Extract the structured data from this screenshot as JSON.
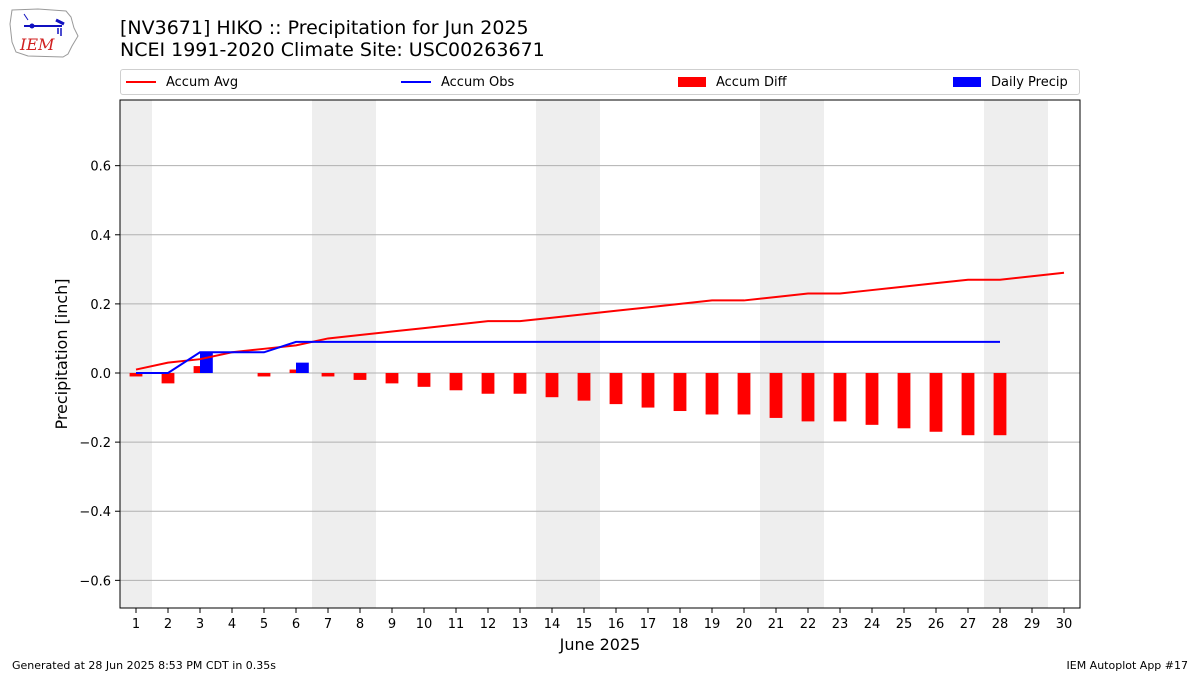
{
  "header": {
    "logo_text": "IEM",
    "title_line1": "[NV3671] HIKO :: Precipitation for Jun 2025",
    "title_line2": "NCEI 1991-2020 Climate Site: USC00263671"
  },
  "legend": {
    "accum_avg": "Accum Avg",
    "accum_obs": "Accum Obs",
    "accum_diff": "Accum Diff",
    "daily_precip": "Daily Precip"
  },
  "colors": {
    "accum_avg": "#ff0000",
    "accum_obs": "#0000ff",
    "accum_diff": "#ff0000",
    "daily_precip": "#0000ff",
    "weekend_band": "#eeeeee",
    "grid": "#b0b0b0"
  },
  "footer": {
    "generated": "Generated at 28 Jun 2025 8:53 PM CDT in 0.35s",
    "app": "IEM Autoplot App #17"
  },
  "chart_data": {
    "type": "bar",
    "xlabel": "June 2025",
    "ylabel": "Precipitation [inch]",
    "xlim": [
      0.5,
      30.5
    ],
    "ylim": [
      -0.68,
      0.79
    ],
    "x_ticks": [
      1,
      2,
      3,
      4,
      5,
      6,
      7,
      8,
      9,
      10,
      11,
      12,
      13,
      14,
      15,
      16,
      17,
      18,
      19,
      20,
      21,
      22,
      23,
      24,
      25,
      26,
      27,
      28,
      29,
      30
    ],
    "y_ticks": [
      -0.6,
      -0.4,
      -0.2,
      0.0,
      0.2,
      0.4,
      0.6
    ],
    "y_tick_labels": [
      "−0.6",
      "−0.4",
      "−0.2",
      "0.0",
      "0.2",
      "0.4",
      "0.6"
    ],
    "grid": "horizontal",
    "legend_position": "top",
    "weekend_bands": [
      [
        1,
        1
      ],
      [
        7,
        8
      ],
      [
        14,
        15
      ],
      [
        21,
        22
      ],
      [
        28,
        29
      ]
    ],
    "series": [
      {
        "name": "Accum Avg",
        "kind": "line",
        "x": [
          1,
          2,
          3,
          4,
          5,
          6,
          7,
          8,
          9,
          10,
          11,
          12,
          13,
          14,
          15,
          16,
          17,
          18,
          19,
          20,
          21,
          22,
          23,
          24,
          25,
          26,
          27,
          28,
          29,
          30
        ],
        "values": [
          0.01,
          0.03,
          0.04,
          0.06,
          0.07,
          0.08,
          0.1,
          0.11,
          0.12,
          0.13,
          0.14,
          0.15,
          0.15,
          0.16,
          0.17,
          0.18,
          0.19,
          0.2,
          0.21,
          0.21,
          0.22,
          0.23,
          0.23,
          0.24,
          0.25,
          0.26,
          0.27,
          0.27,
          0.28,
          0.29
        ]
      },
      {
        "name": "Accum Obs",
        "kind": "line",
        "x": [
          1,
          2,
          3,
          4,
          5,
          6,
          7,
          8,
          9,
          10,
          11,
          12,
          13,
          14,
          15,
          16,
          17,
          18,
          19,
          20,
          21,
          22,
          23,
          24,
          25,
          26,
          27,
          28
        ],
        "values": [
          0.0,
          0.0,
          0.06,
          0.06,
          0.06,
          0.09,
          0.09,
          0.09,
          0.09,
          0.09,
          0.09,
          0.09,
          0.09,
          0.09,
          0.09,
          0.09,
          0.09,
          0.09,
          0.09,
          0.09,
          0.09,
          0.09,
          0.09,
          0.09,
          0.09,
          0.09,
          0.09,
          0.09
        ]
      },
      {
        "name": "Accum Diff",
        "kind": "bar",
        "x": [
          1,
          2,
          3,
          4,
          5,
          6,
          7,
          8,
          9,
          10,
          11,
          12,
          13,
          14,
          15,
          16,
          17,
          18,
          19,
          20,
          21,
          22,
          23,
          24,
          25,
          26,
          27,
          28
        ],
        "values": [
          -0.01,
          -0.03,
          0.02,
          0.0,
          -0.01,
          0.01,
          -0.01,
          -0.02,
          -0.03,
          -0.04,
          -0.05,
          -0.06,
          -0.06,
          -0.07,
          -0.08,
          -0.09,
          -0.1,
          -0.11,
          -0.12,
          -0.12,
          -0.13,
          -0.14,
          -0.14,
          -0.15,
          -0.16,
          -0.17,
          -0.18,
          -0.18
        ]
      },
      {
        "name": "Daily Precip",
        "kind": "bar",
        "x": [
          3,
          6
        ],
        "values": [
          0.06,
          0.03
        ]
      }
    ]
  }
}
